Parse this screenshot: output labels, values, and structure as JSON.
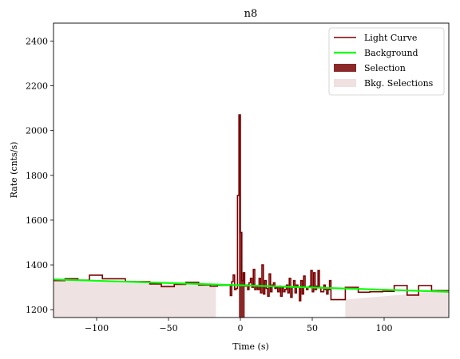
{
  "chart_data": {
    "type": "line",
    "title": "n8",
    "xlabel": "Time (s)",
    "ylabel": "Rate (cnts/s)",
    "xlim": [
      -130,
      145
    ],
    "ylim": [
      1165,
      2480
    ],
    "xticks": [
      -100,
      -50,
      0,
      50,
      100
    ],
    "xtick_labels": [
      "−100",
      "−50",
      "0",
      "50",
      "100"
    ],
    "yticks": [
      1200,
      1400,
      1600,
      1800,
      2000,
      2200,
      2400
    ],
    "ytick_labels": [
      "1200",
      "1400",
      "1600",
      "1800",
      "2000",
      "2200",
      "2400"
    ],
    "legend_position": "upper right",
    "legend": [
      {
        "label": "Light Curve",
        "kind": "line",
        "color": "#7a0000"
      },
      {
        "label": "Background",
        "kind": "line",
        "color": "#00ff00"
      },
      {
        "label": "Selection",
        "kind": "patch",
        "color": "#8b2828"
      },
      {
        "label": "Bkg. Selections",
        "kind": "patch",
        "color": "#f0e0e0"
      }
    ],
    "colors": {
      "light_curve": "#7a0000",
      "background": "#00ff00",
      "selection": "#8b2828",
      "bkg_selection": "#eddfdf"
    },
    "background_model": {
      "x": [
        -130,
        145
      ],
      "y": [
        1335,
        1280
      ]
    },
    "bkg_selections": [
      [
        -130,
        -17
      ],
      [
        73,
        145
      ]
    ],
    "source_selection": [
      -1,
      3
    ],
    "light_curve": {
      "edges": [
        -130,
        -122,
        -113,
        -105,
        -96,
        -88,
        -80,
        -71,
        -63,
        -55,
        -46,
        -38,
        -29,
        -21,
        -16,
        -7,
        -6,
        -5,
        -4,
        -3,
        -2,
        -1,
        0,
        1,
        2,
        3,
        4,
        5,
        6,
        7,
        8,
        9,
        10,
        11,
        12,
        13,
        14,
        15,
        16,
        17,
        18,
        19,
        20,
        21,
        22,
        23,
        24,
        25,
        26,
        27,
        28,
        29,
        30,
        31,
        32,
        33,
        34,
        35,
        36,
        37,
        38,
        39,
        40,
        41,
        42,
        43,
        44,
        45,
        46,
        47,
        48,
        49,
        50,
        51,
        52,
        53,
        54,
        55,
        56,
        57,
        58,
        59,
        60,
        61,
        62,
        63,
        73,
        82,
        90,
        99,
        107,
        116,
        124,
        133,
        145
      ],
      "rates": [
        1330,
        1338,
        1332,
        1354,
        1338,
        1338,
        1325,
        1325,
        1315,
        1303,
        1313,
        1322,
        1310,
        1305,
        1309,
        1263,
        1325,
        1355,
        1290,
        1295,
        1710,
        2070,
        1545,
        1330,
        1365,
        1305,
        1310,
        1290,
        1320,
        1340,
        1300,
        1380,
        1290,
        1305,
        1290,
        1340,
        1275,
        1400,
        1270,
        1330,
        1295,
        1260,
        1360,
        1280,
        1310,
        1320,
        1295,
        1300,
        1280,
        1305,
        1260,
        1300,
        1280,
        1290,
        1310,
        1275,
        1340,
        1255,
        1300,
        1330,
        1275,
        1310,
        1300,
        1240,
        1330,
        1270,
        1350,
        1300,
        1290,
        1300,
        1305,
        1375,
        1280,
        1365,
        1290,
        1305,
        1375,
        1300,
        1280,
        1280,
        1310,
        1290,
        1270,
        1290,
        1330,
        1245,
        1300,
        1278,
        1280,
        1282,
        1308,
        1265,
        1308,
        1285
      ]
    }
  }
}
